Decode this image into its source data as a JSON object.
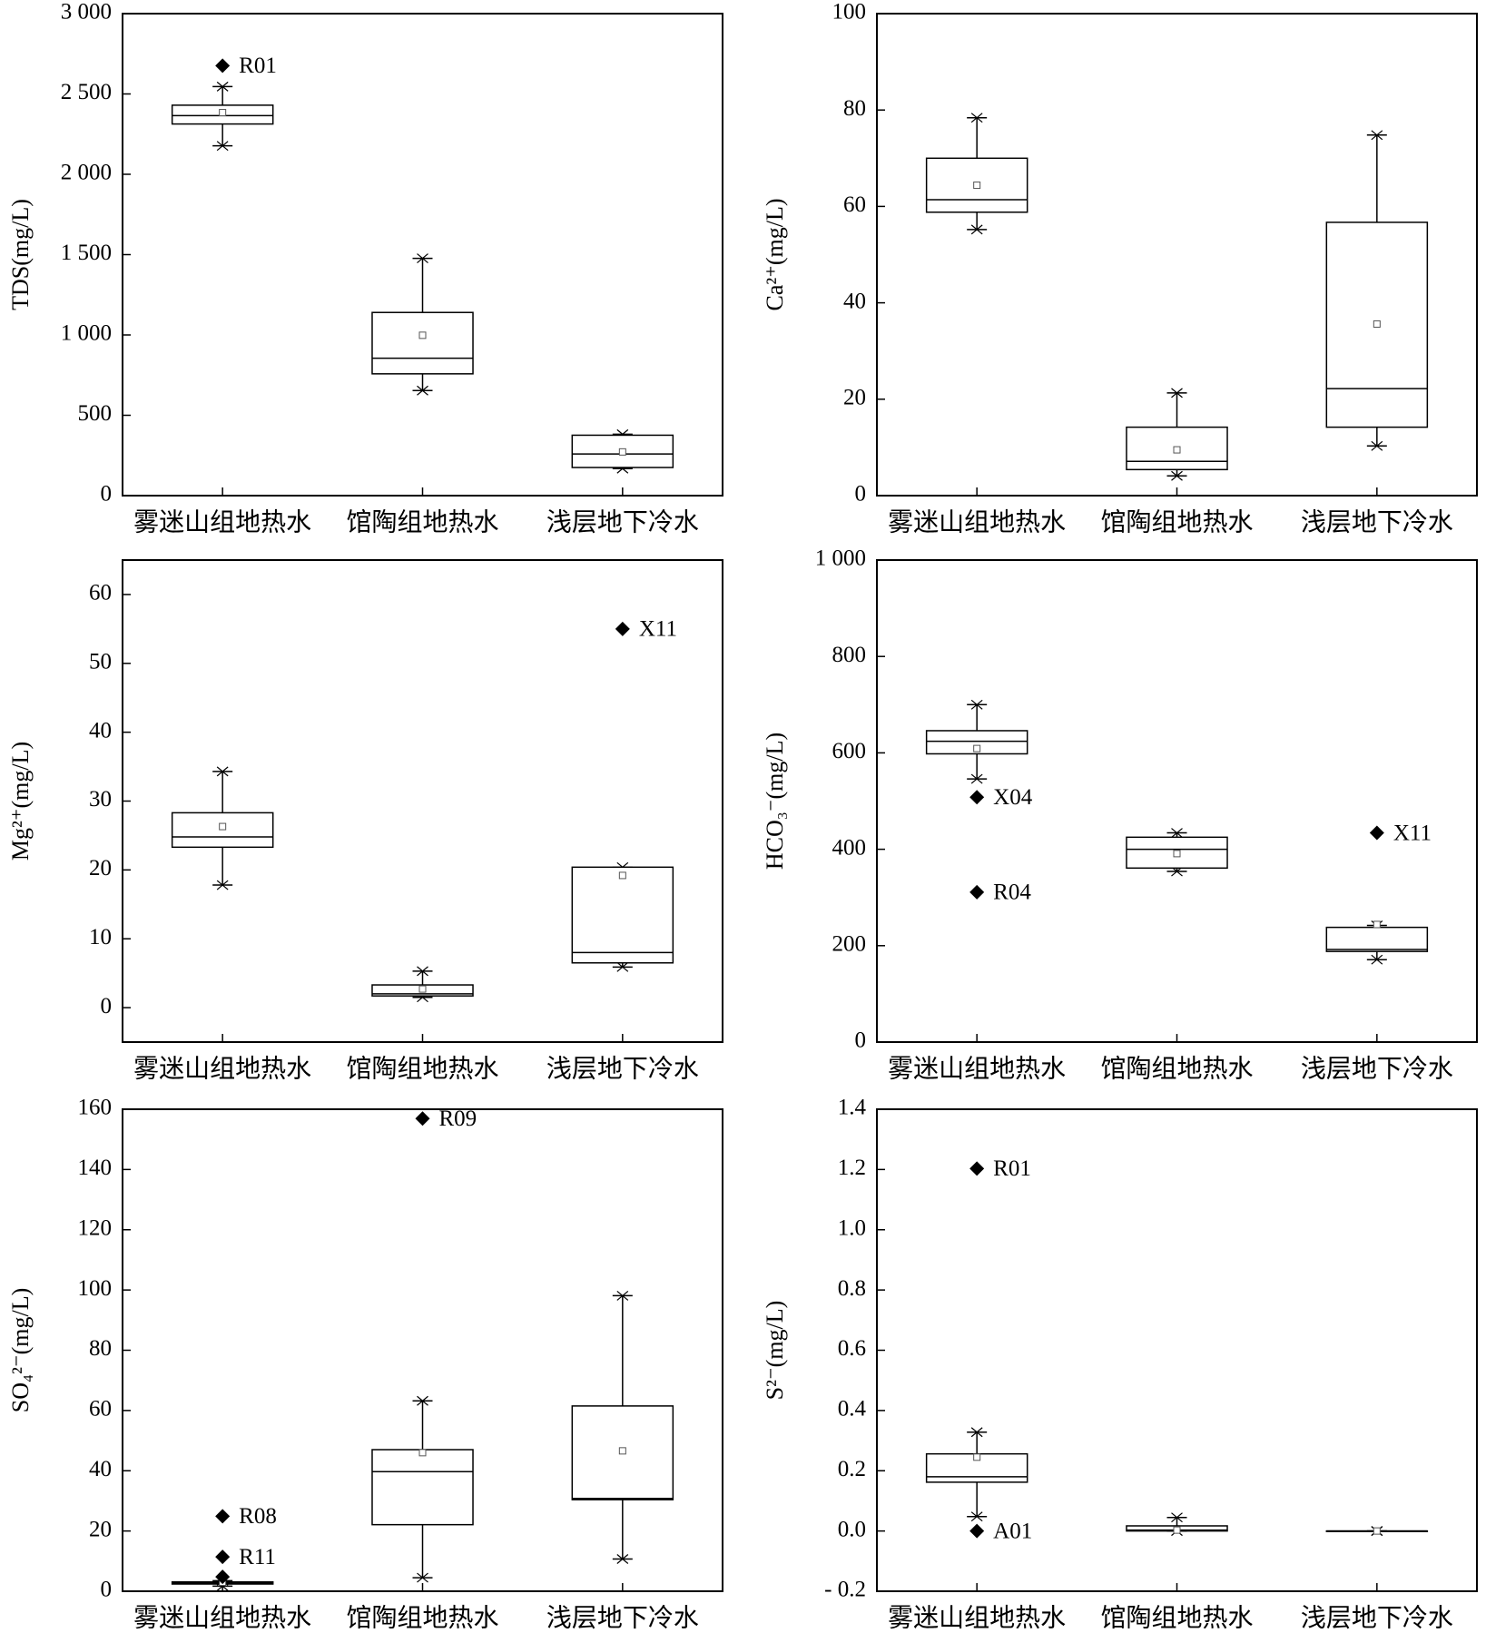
{
  "chart_data": [
    {
      "type": "box",
      "ylabel": "TDS(mg/L)",
      "categories": [
        "雾迷山组地热水",
        "馆陶组地热水",
        "浅层地下冷水"
      ],
      "ylim": [
        0,
        3000
      ],
      "yticks": [
        0,
        500,
        {
          "value": 1000,
          "label": "1 000"
        },
        {
          "value": 1500,
          "label": "1 500"
        },
        {
          "value": 2000,
          "label": "2 000"
        },
        {
          "value": 2500,
          "label": "2 500"
        },
        {
          "value": 3000,
          "label": "3 000"
        }
      ],
      "boxes": [
        {
          "min": 2177,
          "q1": 2313,
          "median": 2365,
          "q3": 2430,
          "max": 2546,
          "mean": 2384,
          "outliers": [
            {
              "value": 2676,
              "label": "R01"
            }
          ]
        },
        {
          "min": 654,
          "q1": 758,
          "median": 855,
          "q3": 1140,
          "max": 1477,
          "mean": 998,
          "outliers": []
        },
        {
          "min": 168,
          "q1": 175,
          "median": 259,
          "q3": 376,
          "max": 382,
          "mean": 272,
          "outliers": []
        }
      ]
    },
    {
      "type": "box",
      "ylabel": "Ca²⁺(mg/L)",
      "categories": [
        "雾迷山组地热水",
        "馆陶组地热水",
        "浅层地下冷水"
      ],
      "ylim": [
        0,
        100
      ],
      "yticks": [
        0,
        20,
        40,
        60,
        80,
        100
      ],
      "boxes": [
        {
          "min": 55.2,
          "q1": 58.8,
          "median": 61.4,
          "q3": 70,
          "max": 78.4,
          "mean": 64.4,
          "outliers": []
        },
        {
          "min": 4.1,
          "q1": 5.4,
          "median": 7.1,
          "q3": 14.2,
          "max": 21.3,
          "mean": 9.5,
          "outliers": []
        },
        {
          "min": 10.3,
          "q1": 14.2,
          "median": 22.2,
          "q3": 56.7,
          "max": 74.8,
          "mean": 35.6,
          "outliers": []
        }
      ]
    },
    {
      "type": "box",
      "ylabel": "Mg²⁺(mg/L)",
      "categories": [
        "雾迷山组地热水",
        "馆陶组地热水",
        "浅层地下冷水"
      ],
      "ylim": [
        -5,
        65
      ],
      "yticks": [
        0,
        10,
        20,
        30,
        40,
        50,
        60
      ],
      "boxes": [
        {
          "min": 17.8,
          "q1": 23.3,
          "median": 24.8,
          "q3": 28.3,
          "max": 34.3,
          "mean": 26.3,
          "outliers": []
        },
        {
          "min": 1.5,
          "q1": 1.7,
          "median": 2.0,
          "q3": 3.3,
          "max": 5.3,
          "mean": 2.7,
          "outliers": []
        },
        {
          "min": 5.9,
          "q1": 6.5,
          "median": 8.0,
          "q3": 20.4,
          "max": 20.4,
          "mean": 19.2,
          "outliers": [
            {
              "value": 55,
              "label": "X11"
            }
          ]
        }
      ]
    },
    {
      "type": "box",
      "ylabel": "HCO₃⁻(mg/L)",
      "categories": [
        "雾迷山组地热水",
        "馆陶组地热水",
        "浅层地下冷水"
      ],
      "ylim": [
        0,
        1000
      ],
      "yticks": [
        0,
        200,
        400,
        600,
        800,
        {
          "value": 1000,
          "label": "1 000"
        }
      ],
      "boxes": [
        {
          "min": 546,
          "q1": 598,
          "median": 624,
          "q3": 646,
          "max": 700,
          "mean": 609,
          "outliers": [
            {
              "value": 508,
              "label": "X04"
            },
            {
              "value": 311,
              "label": "R04"
            }
          ]
        },
        {
          "min": 354,
          "q1": 361,
          "median": 400,
          "q3": 425,
          "max": 434,
          "mean": 391,
          "outliers": []
        },
        {
          "min": 171,
          "q1": 188,
          "median": 192,
          "q3": 238,
          "max": 242,
          "mean": 244,
          "outliers": [
            {
              "value": 434,
              "label": "X11"
            }
          ]
        }
      ]
    },
    {
      "type": "box",
      "ylabel": "SO₄²⁻(mg/L)",
      "categories": [
        "雾迷山组地热水",
        "馆陶组地热水",
        "浅层地下冷水"
      ],
      "ylim": [
        0,
        160
      ],
      "yticks": [
        0,
        20,
        40,
        60,
        80,
        100,
        120,
        140,
        160
      ],
      "boxes": [
        {
          "min": 1.7,
          "q1": 2.4,
          "median": 2.8,
          "q3": 3.1,
          "max": 3.5,
          "mean": 3,
          "outliers": [
            {
              "value": 24.9,
              "label": "R08"
            },
            {
              "value": 11.4,
              "label": "R11"
            },
            {
              "value": 4.8
            }
          ]
        },
        {
          "min": 4.5,
          "q1": 22.1,
          "median": 39.7,
          "q3": 47,
          "max": 63.2,
          "mean": 46,
          "outliers": [
            {
              "value": 156.9,
              "label": "R09"
            }
          ]
        },
        {
          "min": 10.7,
          "q1": 30.4,
          "median": 30.8,
          "q3": 61.5,
          "max": 98.1,
          "mean": 46.6,
          "outliers": []
        }
      ]
    },
    {
      "type": "box",
      "ylabel": "S²⁻(mg/L)",
      "categories": [
        "雾迷山组地热水",
        "馆陶组地热水",
        "浅层地下冷水"
      ],
      "ylim": [
        -0.2,
        1.4
      ],
      "yticks": [
        {
          "value": -0.2,
          "label": "- 0.2"
        },
        {
          "value": 0,
          "label": "0.0"
        },
        0.2,
        0.4,
        0.6,
        0.8,
        {
          "value": 1,
          "label": "1.0"
        },
        1.2,
        1.4
      ],
      "boxes": [
        {
          "min": 0.048,
          "q1": 0.162,
          "median": 0.18,
          "q3": 0.256,
          "max": 0.328,
          "mean": 0.245,
          "outliers": [
            {
              "value": 1.203,
              "label": "R01"
            },
            {
              "value": 0,
              "label": "A01"
            }
          ]
        },
        {
          "min": 0,
          "q1": 0,
          "median": 0.003,
          "q3": 0.017,
          "max": 0.045,
          "mean": 0.003,
          "outliers": []
        },
        {
          "min": 0,
          "q1": 0,
          "median": 0,
          "q3": 0,
          "max": 0,
          "mean": 0,
          "outliers": []
        }
      ]
    }
  ]
}
